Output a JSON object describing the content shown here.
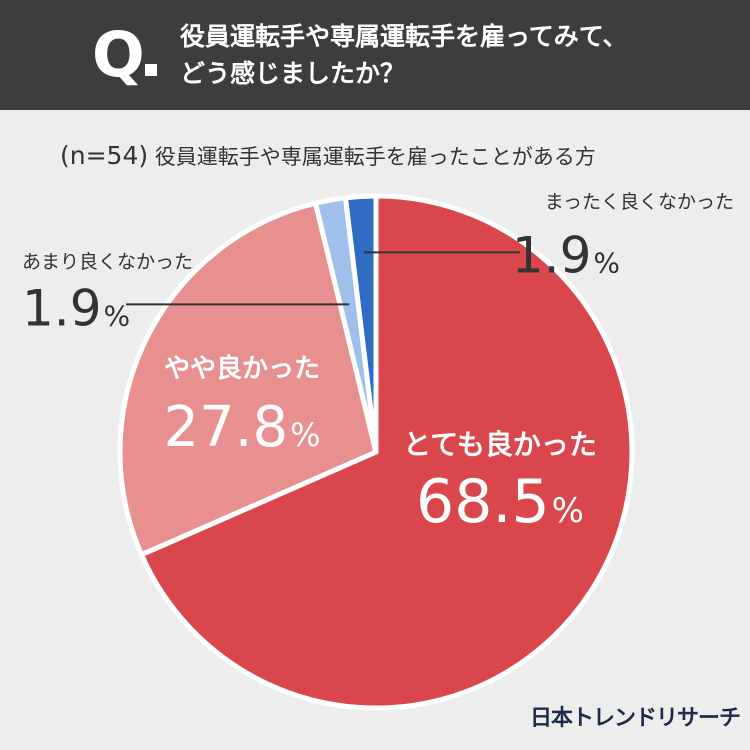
{
  "header": {
    "q_mark": "Q",
    "question_line1": "役員運転手や専属運転手を雇ってみて、",
    "question_line2": "どう感じましたか？"
  },
  "subtitle": {
    "n": "(n=54)",
    "text": "役員運転手や専属運転手を雇ったことがある方"
  },
  "brand": "日本トレンドリサーチ",
  "chart_data": {
    "type": "pie",
    "start_angle": "top",
    "direction": "clockwise",
    "slices": [
      {
        "label": "とても良かった",
        "value": 68.5,
        "value_text": "68.5",
        "unit": "%",
        "color": "#d9474c",
        "label_color": "#ffffff"
      },
      {
        "label": "やや良かった",
        "value": 27.8,
        "value_text": "27.8",
        "unit": "%",
        "color": "#e89090",
        "label_color": "#ffffff"
      },
      {
        "label": "あまり良くなかった",
        "value": 1.9,
        "value_text": "1.9",
        "unit": "%",
        "color": "#9ec0ea",
        "label_color": "#333333"
      },
      {
        "label": "まったく良くなかった",
        "value": 1.9,
        "value_text": "1.9",
        "unit": "%",
        "color": "#2f6cc4",
        "label_color": "#333333"
      }
    ]
  }
}
